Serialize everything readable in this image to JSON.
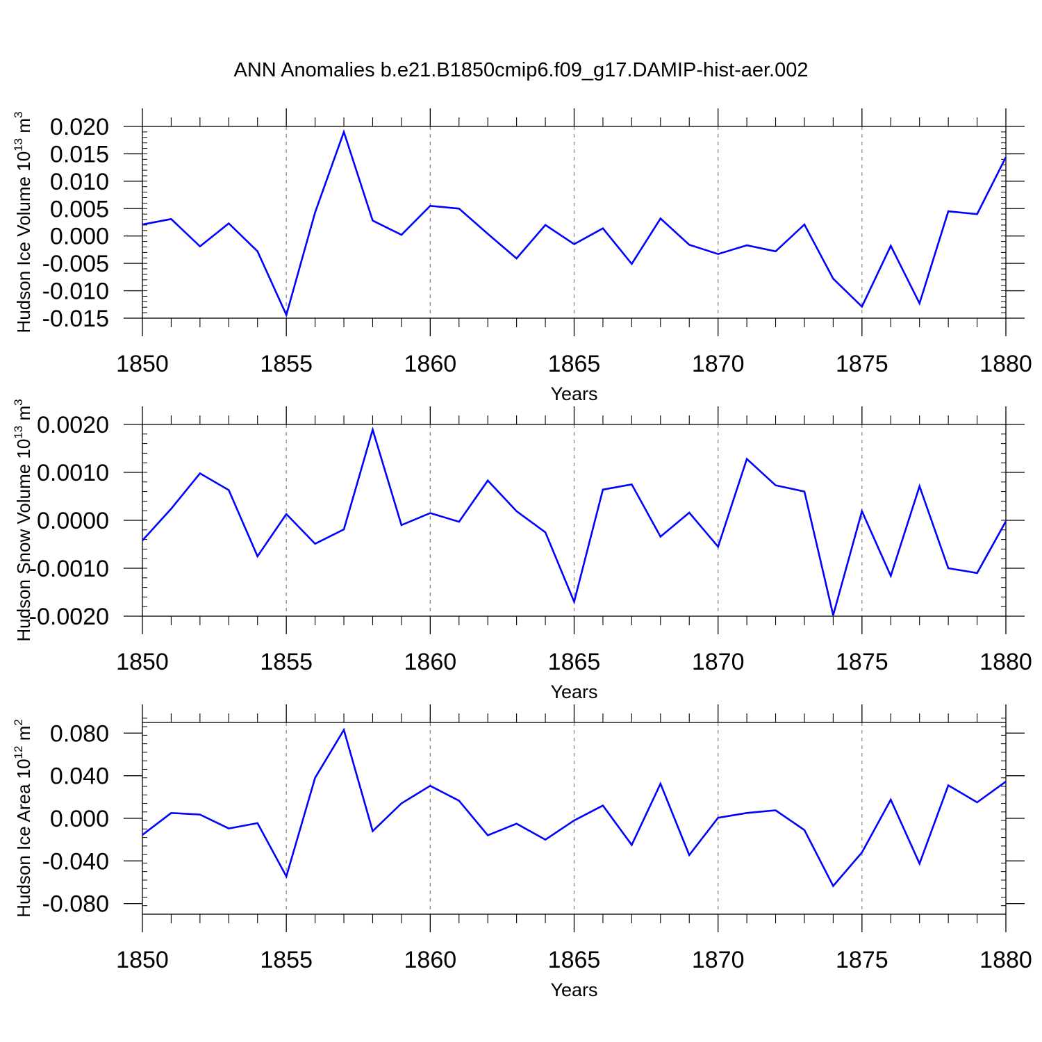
{
  "title": "ANN Anomalies b.e21.B1850cmip6.f09_g17.DAMIP-hist-aer.002",
  "colors": {
    "series": "#0000ff",
    "axis": "#000000",
    "grid": "#808080",
    "background": "#ffffff"
  },
  "chart_data": [
    {
      "type": "line",
      "ylabel": {
        "text": "Hudson Ice Volume 10",
        "exp": "13",
        "unit": " m",
        "unit_exp": "3"
      },
      "xlabel": "Years",
      "xlim": [
        1850,
        1880
      ],
      "ylim": [
        -0.015,
        0.02
      ],
      "x_ticks": [
        "1850",
        "1855",
        "1860",
        "1865",
        "1870",
        "1875",
        "1880"
      ],
      "y_ticks": [
        "-0.015",
        "-0.010",
        "-0.005",
        "0.000",
        "0.005",
        "0.010",
        "0.015",
        "0.020"
      ],
      "grid": "vertical dashed at major x ticks",
      "x": [
        1850,
        1851,
        1852,
        1853,
        1854,
        1855,
        1856,
        1857,
        1858,
        1859,
        1860,
        1861,
        1862,
        1863,
        1864,
        1865,
        1866,
        1867,
        1868,
        1869,
        1870,
        1871,
        1872,
        1873,
        1874,
        1875,
        1876,
        1877,
        1878,
        1879,
        1880
      ],
      "values": [
        0.0021,
        0.0031,
        -0.0019,
        0.0023,
        -0.0028,
        -0.0144,
        0.0043,
        0.019,
        0.0028,
        0.0002,
        0.0055,
        0.005,
        0.0004,
        -0.0041,
        0.002,
        -0.0015,
        0.0014,
        -0.0051,
        0.0032,
        -0.0016,
        -0.0033,
        -0.0017,
        -0.0028,
        0.0021,
        -0.0078,
        -0.0129,
        -0.0018,
        -0.0123,
        0.0045,
        0.004,
        0.0144
      ]
    },
    {
      "type": "line",
      "ylabel": {
        "text": "Hudson Snow Volume 10",
        "exp": "13",
        "unit": " m",
        "unit_exp": "3"
      },
      "xlabel": "Years",
      "xlim": [
        1850,
        1880
      ],
      "ylim": [
        -0.002,
        0.002
      ],
      "x_ticks": [
        "1850",
        "1855",
        "1860",
        "1865",
        "1870",
        "1875",
        "1880"
      ],
      "y_ticks": [
        "-0.0020",
        "-0.0010",
        "0.0000",
        "0.0010",
        "0.0020"
      ],
      "grid": "vertical dashed at major x ticks",
      "x": [
        1850,
        1851,
        1852,
        1853,
        1854,
        1855,
        1856,
        1857,
        1858,
        1859,
        1860,
        1861,
        1862,
        1863,
        1864,
        1865,
        1866,
        1867,
        1868,
        1869,
        1870,
        1871,
        1872,
        1873,
        1874,
        1875,
        1876,
        1877,
        1878,
        1879,
        1880
      ],
      "values": [
        -0.00042,
        0.00024,
        0.00098,
        0.00063,
        -0.00075,
        0.00013,
        -0.00049,
        -0.00019,
        0.00189,
        -0.0001,
        0.00015,
        -3e-05,
        0.00083,
        0.00019,
        -0.00025,
        -0.0017,
        0.00064,
        0.00075,
        -0.00034,
        0.00016,
        -0.00055,
        0.00128,
        0.00073,
        0.0006,
        -0.00198,
        0.00019,
        -0.00116,
        0.00071,
        -0.001,
        -0.0011,
        -2e-05
      ]
    },
    {
      "type": "line",
      "ylabel": {
        "text": "Hudson Ice Area 10",
        "exp": "12",
        "unit": " m",
        "unit_exp": "2"
      },
      "xlabel": "Years",
      "xlim": [
        1850,
        1880
      ],
      "ylim": [
        -0.09,
        0.09
      ],
      "x_ticks": [
        "1850",
        "1855",
        "1860",
        "1865",
        "1870",
        "1875",
        "1880"
      ],
      "y_ticks": [
        "-0.080",
        "-0.040",
        "0.000",
        "0.040",
        "0.080"
      ],
      "grid": "vertical dashed at major x ticks",
      "x": [
        1850,
        1851,
        1852,
        1853,
        1854,
        1855,
        1856,
        1857,
        1858,
        1859,
        1860,
        1861,
        1862,
        1863,
        1864,
        1865,
        1866,
        1867,
        1868,
        1869,
        1870,
        1871,
        1872,
        1873,
        1874,
        1875,
        1876,
        1877,
        1878,
        1879,
        1880
      ],
      "values": [
        -0.0155,
        0.005,
        0.0035,
        -0.0095,
        -0.0045,
        -0.0545,
        0.038,
        0.083,
        -0.012,
        0.014,
        0.0305,
        0.0165,
        -0.016,
        -0.005,
        -0.02,
        -0.002,
        0.012,
        -0.025,
        0.0325,
        -0.0345,
        0.0005,
        0.005,
        0.0075,
        -0.011,
        -0.0635,
        -0.032,
        0.0175,
        -0.0425,
        0.031,
        0.015,
        0.0345
      ]
    }
  ]
}
